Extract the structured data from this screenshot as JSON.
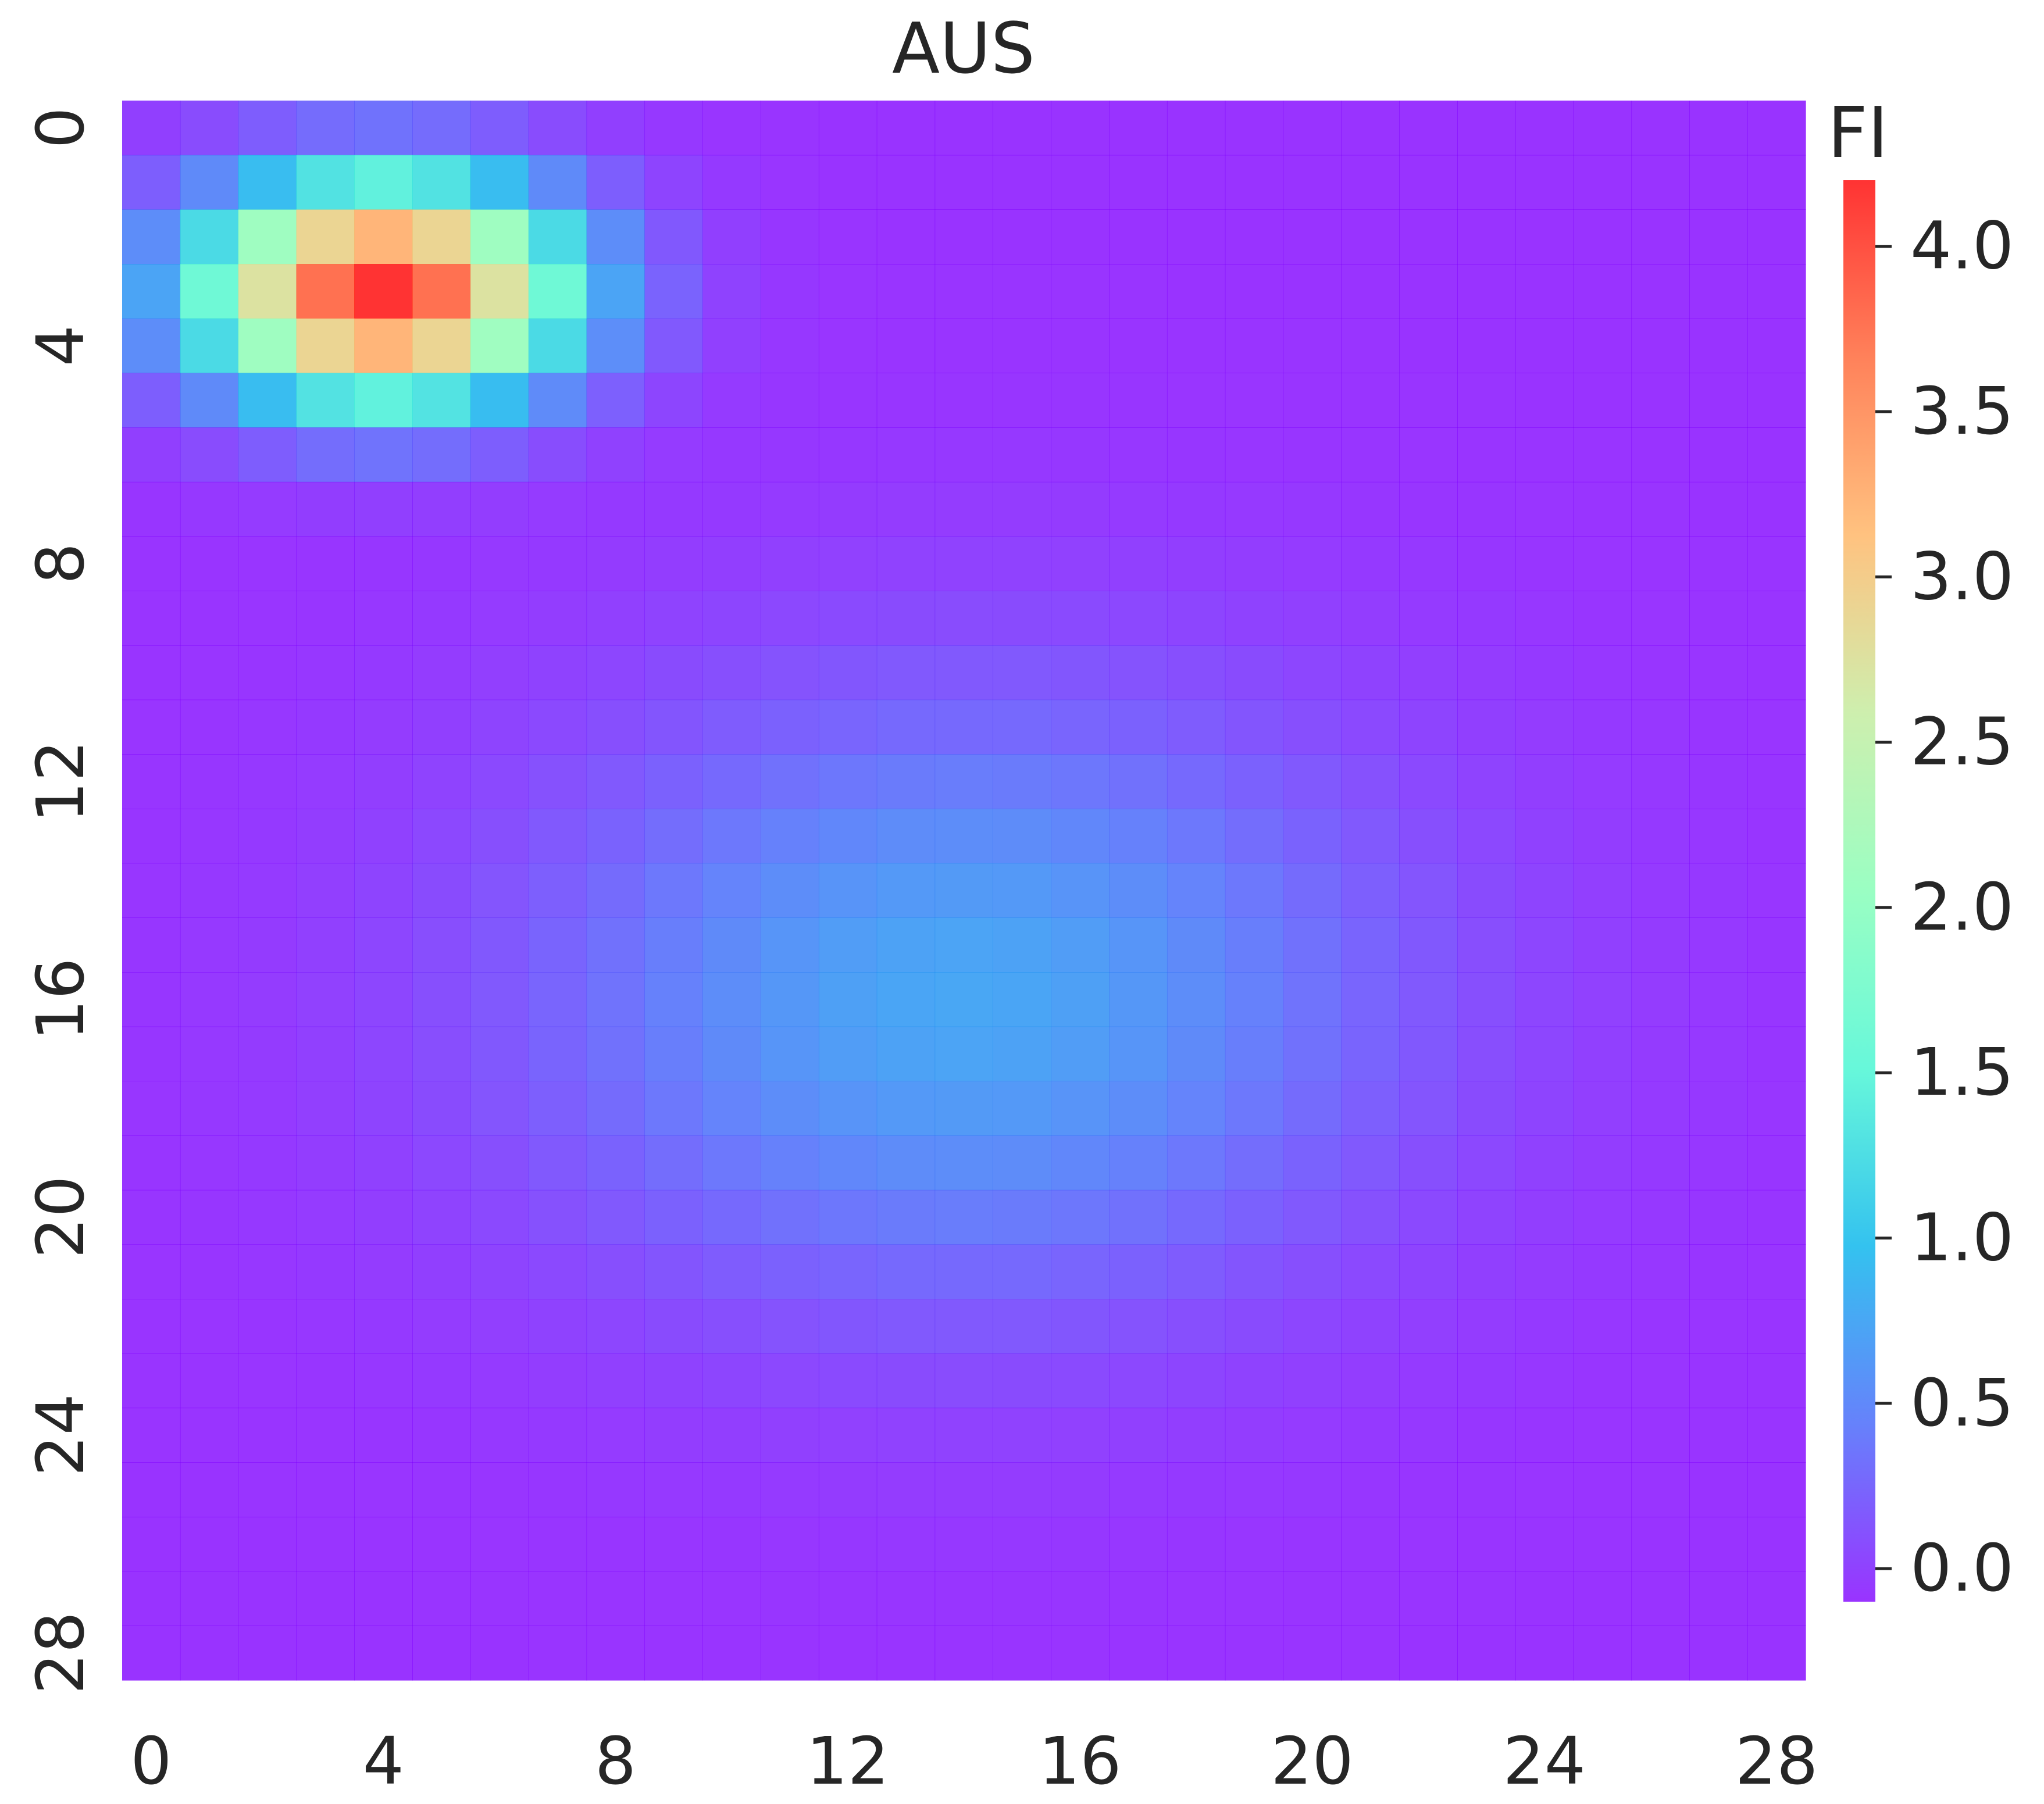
{
  "chart_data": {
    "type": "heatmap",
    "title": "AUS",
    "colorbar_label": "FI",
    "colormap": "rainbow",
    "colormap_stops": [
      "#8000ff",
      "#4062fa",
      "#01b3eb",
      "#41f6d1",
      "#81feb4",
      "#c1eb9a",
      "#ffb360",
      "#ff6231",
      "#ff0000"
    ],
    "cell_alpha": 0.8,
    "rows": 29,
    "cols": 29,
    "x_ticks": [
      0,
      4,
      8,
      12,
      16,
      20,
      24,
      28
    ],
    "x_tick_labels": [
      "0",
      "4",
      "8",
      "12",
      "16",
      "20",
      "24",
      "28"
    ],
    "y_ticks": [
      0,
      4,
      8,
      12,
      16,
      20,
      24,
      28
    ],
    "y_tick_labels": [
      "0",
      "4",
      "8",
      "12",
      "16",
      "20",
      "24",
      "28"
    ],
    "colorbar_range": [
      -0.1,
      4.2
    ],
    "colorbar_ticks": [
      0.0,
      0.5,
      1.0,
      1.5,
      2.0,
      2.5,
      3.0,
      3.5,
      4.0
    ],
    "colorbar_tick_labels": [
      "0.0",
      "0.5",
      "1.0",
      "1.5",
      "2.0",
      "2.5",
      "3.0",
      "3.5",
      "4.0"
    ],
    "hot_spot": {
      "center_col": 4,
      "center_row": 3,
      "peak": 4.2,
      "sigma_col": 2.2,
      "sigma_row": 1.4
    },
    "cool_region": {
      "center_col": 14,
      "center_row": 16,
      "peak": 0.75,
      "sigma_col": 5.2,
      "sigma_row": 3.9
    },
    "baseline": -0.1
  }
}
